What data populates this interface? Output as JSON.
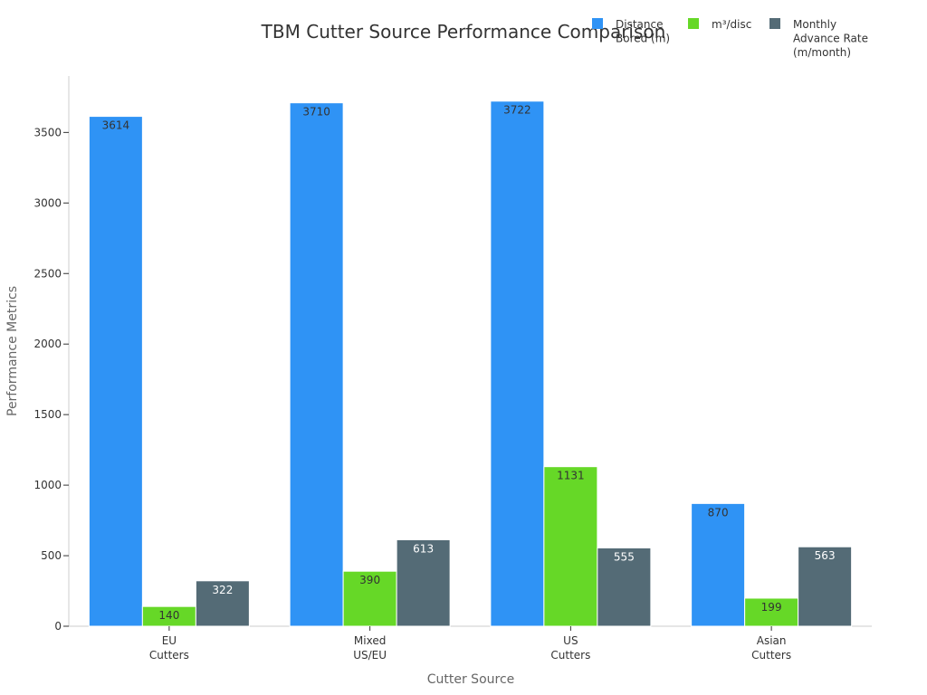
{
  "chart_data": {
    "type": "bar",
    "title": "TBM Cutter Source Performance Comparison",
    "xlabel": "Cutter Source",
    "ylabel": "Performance Metrics",
    "categories": [
      [
        "EU",
        "Cutters"
      ],
      [
        "Mixed",
        "US/EU"
      ],
      [
        "US",
        "Cutters"
      ],
      [
        "Asian",
        "Cutters"
      ]
    ],
    "series": [
      {
        "name": [
          "Distance",
          "Bored (m)"
        ],
        "color": "#2f93f5",
        "label_color": "#333333",
        "values": [
          3614,
          3710,
          3722,
          870
        ]
      },
      {
        "name": [
          "m³/disc"
        ],
        "color": "#66d827",
        "label_color": "#333333",
        "values": [
          140,
          390,
          1131,
          199
        ]
      },
      {
        "name": [
          "Monthly",
          "Advance Rate",
          "(m/month)"
        ],
        "color": "#546b76",
        "label_color": "#ffffff",
        "values": [
          322,
          613,
          555,
          563
        ]
      }
    ],
    "yticks": [
      0,
      500,
      1000,
      1500,
      2000,
      2500,
      3000,
      3500
    ],
    "ylim": [
      0,
      3900
    ],
    "grid": false,
    "legend_position": "top-right"
  }
}
